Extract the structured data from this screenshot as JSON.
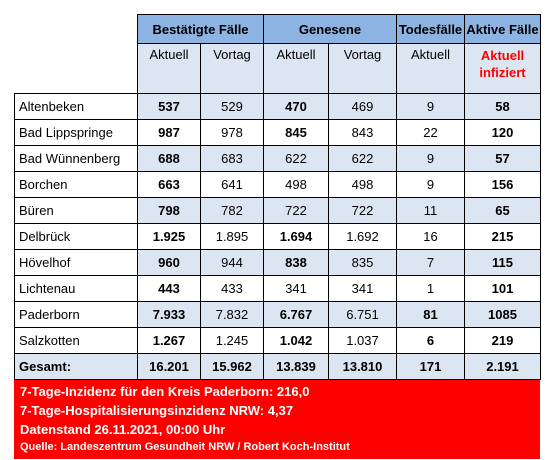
{
  "header": {
    "groups": [
      "Bestätigte Fälle",
      "Genesene",
      "Todesfälle",
      "Aktive Fälle"
    ],
    "sub": [
      "Aktuell",
      "Vortag",
      "Aktuell",
      "Vortag",
      "Aktuell"
    ],
    "active_sub": [
      "Aktuell",
      "infiziert"
    ]
  },
  "rows": [
    {
      "name": "Altenbeken",
      "cells": [
        "537",
        "529",
        "470",
        "469",
        "9",
        "58"
      ]
    },
    {
      "name": "Bad Lippspringe",
      "cells": [
        "987",
        "978",
        "845",
        "843",
        "22",
        "120"
      ]
    },
    {
      "name": "Bad Wünnenberg",
      "cells": [
        "688",
        "683",
        "622",
        "622",
        "9",
        "57"
      ]
    },
    {
      "name": "Borchen",
      "cells": [
        "663",
        "641",
        "498",
        "498",
        "9",
        "156"
      ]
    },
    {
      "name": "Büren",
      "cells": [
        "798",
        "782",
        "722",
        "722",
        "11",
        "65"
      ]
    },
    {
      "name": "Delbrück",
      "cells": [
        "1.925",
        "1.895",
        "1.694",
        "1.692",
        "16",
        "215"
      ]
    },
    {
      "name": "Hövelhof",
      "cells": [
        "960",
        "944",
        "838",
        "835",
        "7",
        "115"
      ]
    },
    {
      "name": "Lichtenau",
      "cells": [
        "443",
        "433",
        "341",
        "341",
        "1",
        "101"
      ]
    },
    {
      "name": "Paderborn",
      "cells": [
        "7.933",
        "7.832",
        "6.767",
        "6.751",
        "81",
        "1085"
      ]
    },
    {
      "name": "Salzkotten",
      "cells": [
        "1.267",
        "1.245",
        "1.042",
        "1.037",
        "6",
        "219"
      ]
    }
  ],
  "total": {
    "name": "Gesamt:",
    "cells": [
      "16.201",
      "15.962",
      "13.839",
      "13.810",
      "171",
      "2.191"
    ]
  },
  "footer": {
    "line1": "7-Tage-Inzidenz für den Kreis Paderborn: 216,0",
    "line2": "7-Tage-Hospitalisierungsinzidenz NRW: 4,37",
    "line3": "Datenstand 26.11.2021, 00:00 Uhr",
    "source": "Quelle: Landeszentrum Gesundheit NRW / Robert Koch-Institut"
  },
  "colors": {
    "header": "#8db3e2",
    "band": "#dce6f2",
    "alert": "#ff0000"
  }
}
